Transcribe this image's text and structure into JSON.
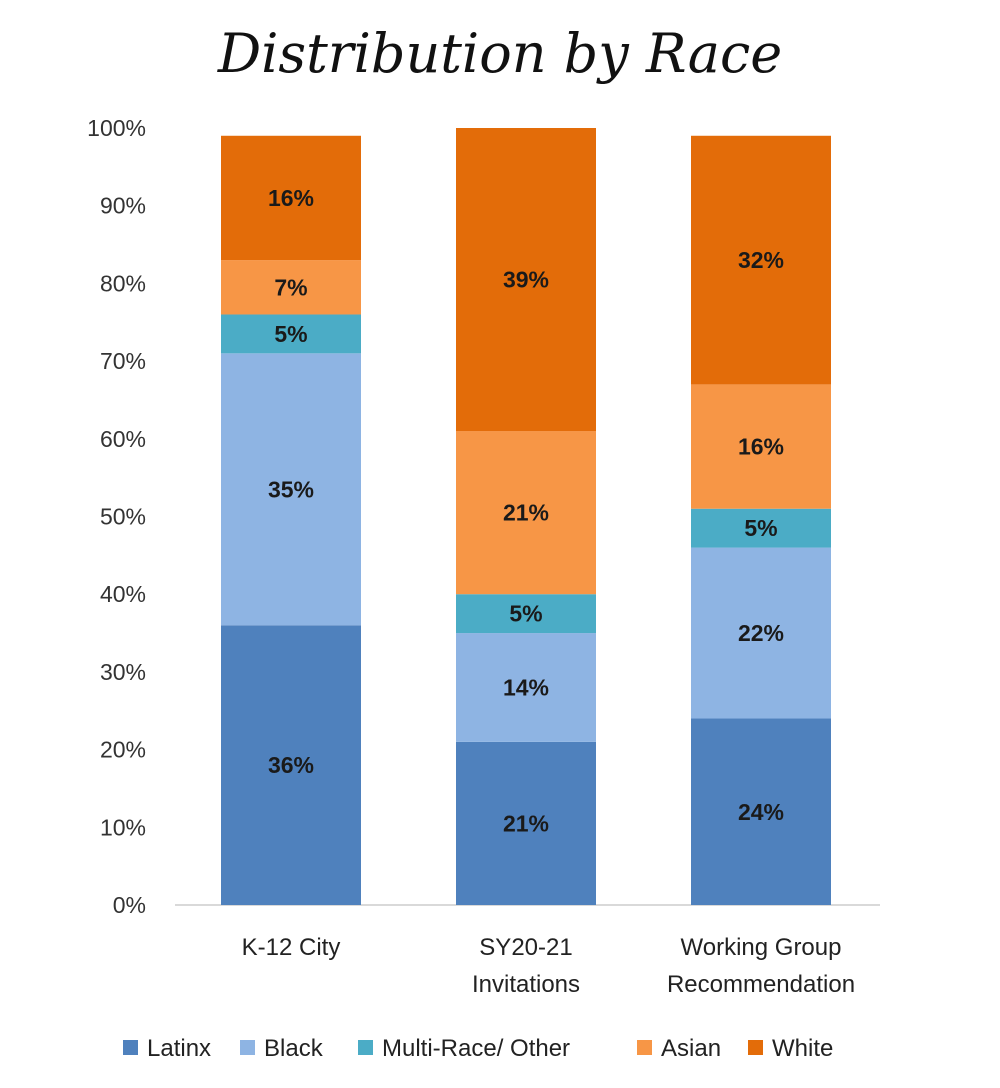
{
  "chart_data": {
    "type": "bar",
    "stacked": true,
    "title": "Distribution by Race",
    "xlabel": "",
    "ylabel": "",
    "ylim": [
      0,
      100
    ],
    "y_ticks": [
      "0%",
      "10%",
      "20%",
      "30%",
      "40%",
      "50%",
      "60%",
      "70%",
      "80%",
      "90%",
      "100%"
    ],
    "categories": [
      [
        "K-12 City"
      ],
      [
        "SY20-21",
        "Invitations"
      ],
      [
        "Working Group",
        "Recommendation"
      ]
    ],
    "series": [
      {
        "name": "Latinx",
        "color": "#4F81BD",
        "values": [
          36,
          21,
          24
        ],
        "labels": [
          "36%",
          "21%",
          "24%"
        ]
      },
      {
        "name": "Black",
        "color": "#8EB4E3",
        "values": [
          35,
          14,
          22
        ],
        "labels": [
          "35%",
          "14%",
          "22%"
        ]
      },
      {
        "name": "Multi-Race/ Other",
        "color": "#4BACC6",
        "values": [
          5,
          5,
          5
        ],
        "labels": [
          "5%",
          "5%",
          "5%"
        ]
      },
      {
        "name": "Asian",
        "color": "#F79646",
        "values": [
          7,
          21,
          16
        ],
        "labels": [
          "7%",
          "21%",
          "16%"
        ]
      },
      {
        "name": "White",
        "color": "#E36C09",
        "values": [
          16,
          39,
          32
        ],
        "labels": [
          "16%",
          "39%",
          "32%"
        ]
      }
    ],
    "grid": false,
    "legend": "bottom"
  }
}
